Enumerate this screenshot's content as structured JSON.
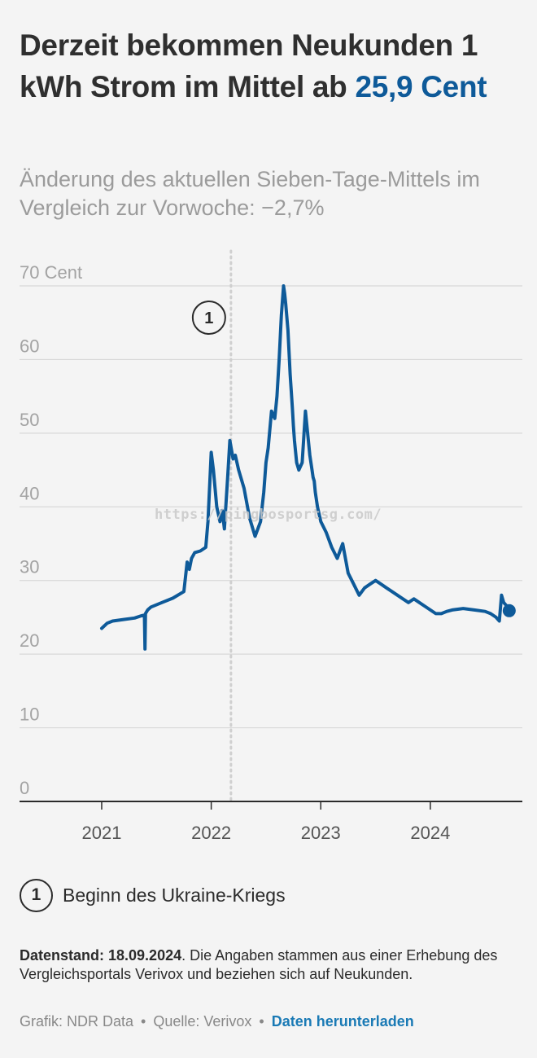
{
  "header": {
    "title_main": "Derzeit bekommen Neukunden 1 kWh Strom im Mittel ab ",
    "title_highlight": "25,9 Cent",
    "subtitle": "Änderung des aktuellen Sieben-Tage-Mittels im Vergleich zur Vorwoche: −2,7%"
  },
  "colors": {
    "accent": "#0e5a99",
    "line": "#0e5a99",
    "grid": "#d8d8d8",
    "annotation_line": "#cfcfcf",
    "tick_text": "#a3a3a3"
  },
  "annotation": {
    "number": "1",
    "x": 2022.18,
    "legend_label": "Beginn des Ukraine-Kriegs"
  },
  "chart_data": {
    "type": "line",
    "title": "Derzeit bekommen Neukunden 1 kWh Strom im Mittel ab 25,9 Cent",
    "xlabel": "",
    "ylabel": "",
    "y_unit_label": "Cent",
    "xlim": [
      2020.25,
      2024.84
    ],
    "ylim": [
      0,
      70
    ],
    "y_ticks": [
      0,
      10,
      20,
      30,
      40,
      50,
      60,
      70
    ],
    "y_tick_labels": [
      "0",
      "10",
      "20",
      "30",
      "40",
      "50",
      "60",
      "70 Cent"
    ],
    "x_ticks": [
      2021,
      2022,
      2023,
      2024
    ],
    "x_tick_labels": [
      "2021",
      "2022",
      "2023",
      "2024"
    ],
    "grid": "horizontal",
    "series": [
      {
        "name": "",
        "x": [
          2021.0,
          2021.05,
          2021.1,
          2021.2,
          2021.3,
          2021.36,
          2021.39,
          2021.395,
          2021.4,
          2021.42,
          2021.45,
          2021.55,
          2021.65,
          2021.75,
          2021.78,
          2021.8,
          2021.82,
          2021.85,
          2021.9,
          2021.95,
          2021.97,
          2022.0,
          2022.02,
          2022.05,
          2022.08,
          2022.1,
          2022.12,
          2022.15,
          2022.17,
          2022.2,
          2022.22,
          2022.25,
          2022.3,
          2022.35,
          2022.4,
          2022.45,
          2022.48,
          2022.5,
          2022.52,
          2022.55,
          2022.58,
          2022.6,
          2022.62,
          2022.64,
          2022.66,
          2022.67,
          2022.68,
          2022.7,
          2022.72,
          2022.74,
          2022.75,
          2022.76,
          2022.78,
          2022.8,
          2022.83,
          2022.86,
          2022.88,
          2022.9,
          2022.92,
          2022.93,
          2022.94,
          2022.95,
          2022.97,
          2023.0,
          2023.05,
          2023.1,
          2023.15,
          2023.2,
          2023.25,
          2023.3,
          2023.35,
          2023.4,
          2023.45,
          2023.5,
          2023.55,
          2023.6,
          2023.65,
          2023.7,
          2023.75,
          2023.8,
          2023.85,
          2023.9,
          2023.95,
          2024.0,
          2024.05,
          2024.1,
          2024.15,
          2024.2,
          2024.3,
          2024.4,
          2024.5,
          2024.55,
          2024.6,
          2024.63,
          2024.65,
          2024.67,
          2024.7,
          2024.72
        ],
        "values": [
          23.5,
          24.2,
          24.5,
          24.7,
          24.9,
          25.2,
          25.3,
          20.7,
          25.5,
          26.0,
          26.4,
          27.0,
          27.6,
          28.5,
          32.5,
          31.5,
          33.0,
          33.8,
          34.0,
          34.5,
          38.0,
          47.4,
          45.0,
          40.0,
          38.0,
          39.5,
          37.0,
          44.0,
          49.0,
          46.5,
          47.0,
          45.0,
          42.5,
          38.5,
          36.0,
          38.0,
          42.0,
          46.0,
          48.0,
          53.0,
          52.0,
          55.0,
          60.0,
          66.0,
          70.0,
          69.0,
          67.5,
          64.0,
          58.0,
          53.5,
          51.0,
          49.0,
          46.0,
          45.0,
          46.0,
          53.0,
          50.0,
          47.0,
          45.0,
          44.0,
          43.5,
          42.0,
          40.0,
          38.0,
          36.5,
          34.5,
          33.0,
          35.0,
          31.0,
          29.5,
          28.0,
          29.0,
          29.5,
          30.0,
          29.5,
          29.0,
          28.5,
          28.0,
          27.5,
          27.0,
          27.5,
          27.0,
          26.5,
          26.0,
          25.5,
          25.5,
          25.8,
          26.0,
          26.2,
          26.0,
          25.8,
          25.5,
          25.0,
          24.5,
          28.0,
          27.0,
          26.5,
          25.9
        ]
      }
    ],
    "end_marker": {
      "x": 2024.72,
      "y": 25.9
    }
  },
  "legend": {
    "number": "1",
    "label": "Beginn des Ukraine-Kriegs"
  },
  "footer": {
    "note_bold": "Datenstand: 18.09.2024",
    "note_text": ". Die Angaben stammen aus einer Erhebung des Vergleichsportals Verivox und beziehen sich auf Neukunden.",
    "credit_grafik": "Grafik: NDR Data",
    "separator": "•",
    "credit_quelle": "Quelle: Verivox",
    "download_link": "Daten herunterladen"
  },
  "watermark": "https://pingbosportsg.com/"
}
